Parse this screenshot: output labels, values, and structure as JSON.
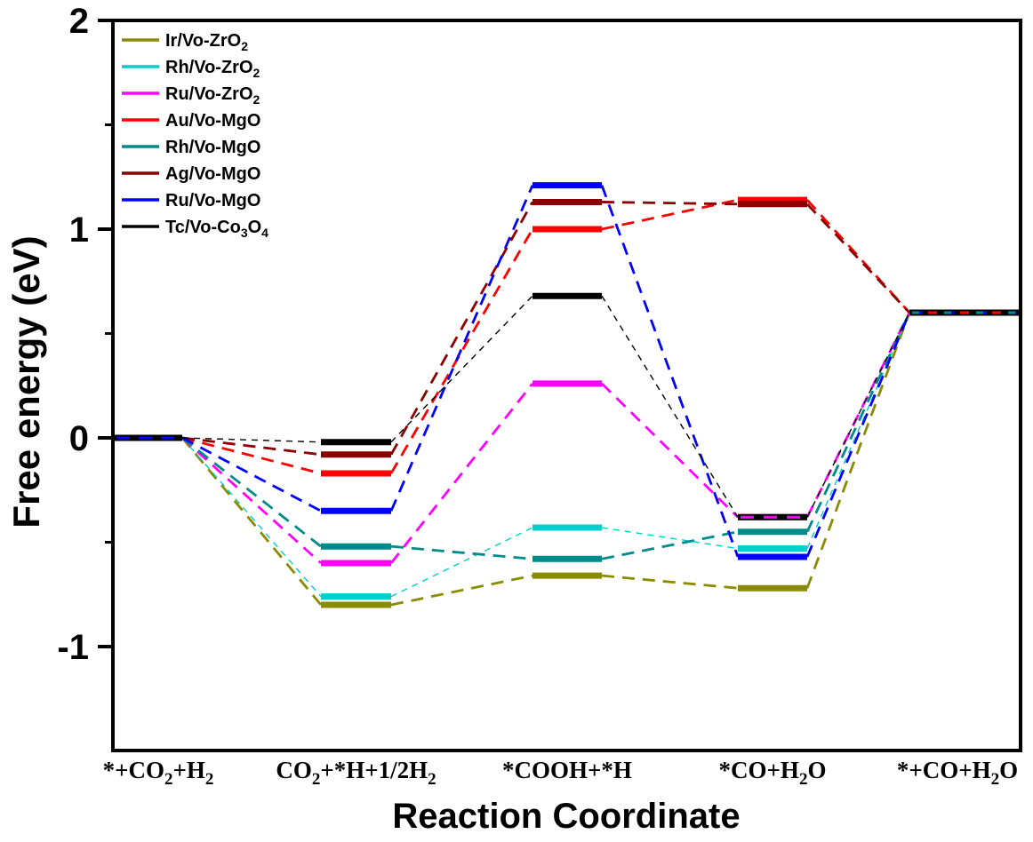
{
  "chart_data": {
    "type": "line",
    "subtype": "reaction-free-energy-diagram",
    "title": "",
    "xlabel": "Reaction Coordinate",
    "ylabel": "Free energy (eV)",
    "ylim": [
      -1.5,
      2.0
    ],
    "yticks": [
      2,
      1,
      0,
      -1
    ],
    "yticks_minor": [
      1.5,
      0.5,
      -0.5
    ],
    "grid": false,
    "legend_position": "top-left-inside",
    "categories": [
      "*+CO_2_+H_2_",
      "CO_2_+*H+1/2H_2_",
      "*COOH+*H",
      "*CO+H_2_O",
      "*+CO+H_2_O"
    ],
    "series": [
      {
        "name": "Ir/Vo-ZrO_2_",
        "color": "#8B8B00",
        "connector": "dashed-thick",
        "values": [
          0.0,
          -0.8,
          -0.66,
          -0.72,
          0.6
        ]
      },
      {
        "name": "Rh/Vo-ZrO_2_",
        "color": "#00CDCD",
        "connector": "dashed-thin",
        "values": [
          0.0,
          -0.76,
          -0.43,
          -0.53,
          0.6
        ]
      },
      {
        "name": "Ru/Vo-ZrO_2_",
        "color": "#FF00FF",
        "connector": "dashed-thick",
        "values": [
          0.0,
          -0.6,
          0.26,
          -0.38,
          0.6
        ]
      },
      {
        "name": "Au/Vo-MgO",
        "color": "#FF0000",
        "connector": "dashed-thick",
        "values": [
          0.0,
          -0.17,
          1.0,
          1.14,
          0.6
        ]
      },
      {
        "name": "Rh/Vo-MgO",
        "color": "#008B8B",
        "connector": "dashed-thick",
        "values": [
          0.0,
          -0.52,
          -0.58,
          -0.45,
          0.6
        ]
      },
      {
        "name": "Ag/Vo-MgO",
        "color": "#8B0000",
        "connector": "dashed-thick",
        "values": [
          0.0,
          -0.08,
          1.13,
          1.12,
          0.6
        ]
      },
      {
        "name": "Ru/Vo-MgO",
        "color": "#0000FF",
        "connector": "dashed-thick",
        "values": [
          0.0,
          -0.35,
          1.21,
          -0.57,
          0.6
        ]
      },
      {
        "name": "Tc/Vo-Co_3_O_4_",
        "color": "#000000",
        "connector": "dashed-thin",
        "values": [
          0.0,
          -0.02,
          0.68,
          -0.38,
          0.6
        ]
      }
    ],
    "colors": {
      "axis": "#000000",
      "background": "#FFFFFF"
    }
  }
}
